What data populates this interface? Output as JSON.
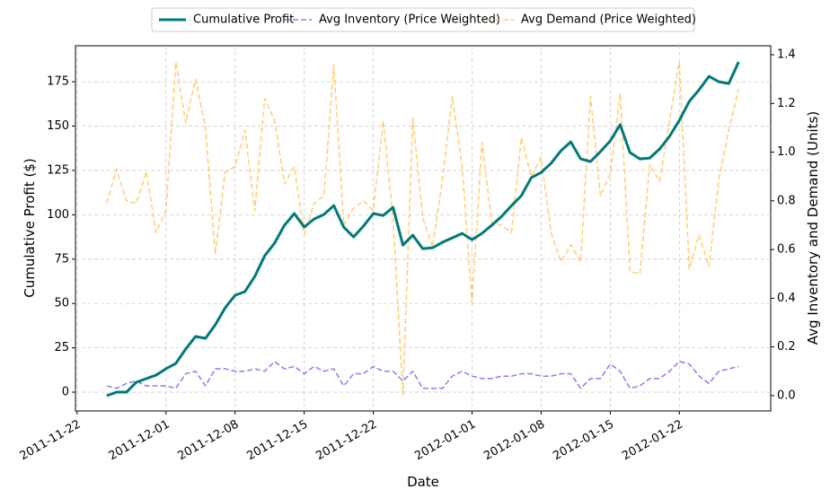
{
  "chart_data": {
    "type": "line",
    "xlabel": "Date",
    "ylabel": "Cumulative Profit ($)",
    "y2label": "Avg Inventory and Demand (Units)",
    "x": [
      "2011-11-25",
      "2011-11-26",
      "2011-11-27",
      "2011-11-28",
      "2011-11-29",
      "2011-11-30",
      "2011-12-01",
      "2011-12-02",
      "2011-12-03",
      "2011-12-04",
      "2011-12-05",
      "2011-12-06",
      "2011-12-07",
      "2011-12-08",
      "2011-12-09",
      "2011-12-10",
      "2011-12-11",
      "2011-12-12",
      "2011-12-13",
      "2011-12-14",
      "2011-12-15",
      "2011-12-16",
      "2011-12-17",
      "2011-12-18",
      "2011-12-19",
      "2011-12-20",
      "2011-12-21",
      "2011-12-22",
      "2011-12-23",
      "2011-12-24",
      "2011-12-25",
      "2011-12-26",
      "2011-12-27",
      "2011-12-28",
      "2011-12-29",
      "2011-12-30",
      "2011-12-31",
      "2012-01-01",
      "2012-01-02",
      "2012-01-03",
      "2012-01-04",
      "2012-01-05",
      "2012-01-06",
      "2012-01-07",
      "2012-01-08",
      "2012-01-09",
      "2012-01-10",
      "2012-01-11",
      "2012-01-12",
      "2012-01-13",
      "2012-01-14",
      "2012-01-15",
      "2012-01-16",
      "2012-01-17",
      "2012-01-18",
      "2012-01-19",
      "2012-01-20",
      "2012-01-21",
      "2012-01-22",
      "2012-01-23",
      "2012-01-24",
      "2012-01-25",
      "2012-01-26",
      "2012-01-27",
      "2012-01-28"
    ],
    "series": [
      {
        "name": "Cumulative Profit",
        "color": "#007a78",
        "dash": false,
        "width": 3,
        "opacity": 1,
        "axis": "y",
        "values": [
          -2,
          0,
          0,
          5.6,
          7.6,
          9.6,
          13.2,
          16.2,
          24.3,
          31.4,
          30.3,
          38,
          47.6,
          54.6,
          56.7,
          65.3,
          76.9,
          84,
          94.1,
          100.7,
          93.1,
          97.6,
          100.2,
          105.2,
          93.1,
          87.5,
          93.6,
          100.7,
          99.6,
          104.2,
          82.9,
          88.5,
          80.9,
          81.4,
          84.5,
          87,
          89.5,
          86,
          89.5,
          94.1,
          99.1,
          105.2,
          110.8,
          120.9,
          123.9,
          129,
          136.1,
          141.1,
          131.5,
          130,
          135.6,
          141.7,
          150.8,
          135.1,
          131.5,
          132,
          137.1,
          144.2,
          153.3,
          163.9,
          170.5,
          178.1,
          175,
          174,
          186.2
        ]
      },
      {
        "name": "Avg Inventory (Price Weighted)",
        "color": "#6b6bee",
        "dash": true,
        "width": 1.5,
        "opacity": 0.85,
        "axis": "y2",
        "values": [
          0.04,
          0.03,
          0.05,
          0.06,
          0.04,
          0.04,
          0.04,
          0.03,
          0.09,
          0.1,
          0.04,
          0.11,
          0.11,
          0.1,
          0.1,
          0.11,
          0.1,
          0.14,
          0.11,
          0.12,
          0.09,
          0.12,
          0.1,
          0.11,
          0.04,
          0.09,
          0.09,
          0.12,
          0.1,
          0.1,
          0.06,
          0.1,
          0.03,
          0.03,
          0.03,
          0.08,
          0.1,
          0.08,
          0.07,
          0.07,
          0.08,
          0.08,
          0.09,
          0.09,
          0.08,
          0.08,
          0.09,
          0.09,
          0.03,
          0.07,
          0.07,
          0.13,
          0.1,
          0.03,
          0.04,
          0.07,
          0.07,
          0.1,
          0.14,
          0.13,
          0.08,
          0.05,
          0.1,
          0.11,
          0.12
        ]
      },
      {
        "name": "Avg Demand (Price Weighted)",
        "color": "#ffbf47",
        "dash": true,
        "width": 1.5,
        "opacity": 0.75,
        "axis": "y2",
        "values": [
          0.79,
          0.93,
          0.8,
          0.79,
          0.92,
          0.67,
          0.76,
          1.37,
          1.12,
          1.3,
          1.1,
          0.58,
          0.92,
          0.94,
          1.09,
          0.76,
          1.22,
          1.13,
          0.87,
          0.94,
          0.66,
          0.79,
          0.82,
          1.36,
          0.7,
          0.77,
          0.8,
          0.76,
          1.13,
          0.73,
          0.0,
          1.14,
          0.73,
          0.61,
          0.89,
          1.23,
          0.94,
          0.38,
          1.04,
          0.71,
          0.7,
          0.67,
          1.06,
          0.9,
          0.98,
          0.67,
          0.55,
          0.62,
          0.55,
          1.23,
          0.82,
          0.91,
          1.24,
          0.51,
          0.5,
          0.95,
          0.88,
          1.13,
          1.37,
          0.52,
          0.66,
          0.53,
          0.89,
          1.09,
          1.26
        ]
      }
    ],
    "xlim": [
      "2011-11-21T20:00",
      "2012-01-31T06:00"
    ],
    "xticks": [
      "2011-11-22",
      "2011-12-01",
      "2011-12-08",
      "2011-12-15",
      "2011-12-22",
      "2012-01-01",
      "2012-01-08",
      "2012-01-15",
      "2012-01-22"
    ],
    "ylim": [
      -10.6,
      195.3
    ],
    "yticks": [
      0,
      25,
      50,
      75,
      100,
      125,
      150,
      175
    ],
    "y2lim": [
      -0.063,
      1.437
    ],
    "y2ticks": [
      {
        "value": 0,
        "label": "0.0"
      },
      0.2,
      0.4,
      0.6,
      0.8,
      {
        "value": 1,
        "label": "1.0"
      },
      1.2,
      1.4
    ],
    "grid": true,
    "legend": "top"
  }
}
